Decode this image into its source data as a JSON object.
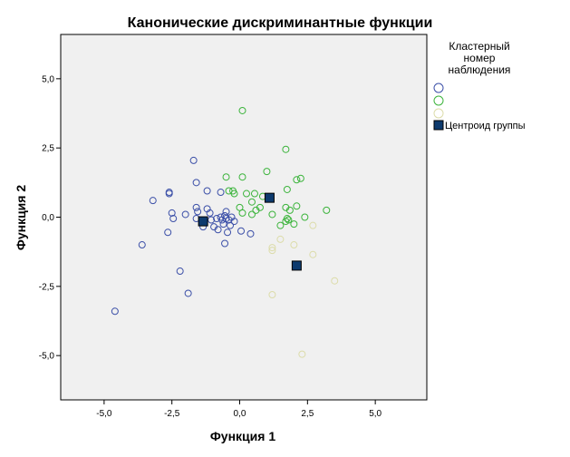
{
  "chart_data": {
    "type": "scatter",
    "title": "Канонические дискриминантные функции",
    "xlabel": "Функция 1",
    "ylabel": "Функция 2",
    "xlim": [
      -6.6,
      6.9
    ],
    "ylim": [
      -6.6,
      6.6
    ],
    "xticks": [
      -5,
      -2.5,
      0,
      2.5,
      5
    ],
    "xtick_labels": [
      "-5,0",
      "-2,5",
      "0,0",
      "2,5",
      "5,0"
    ],
    "yticks": [
      -5,
      -2.5,
      0,
      2.5,
      5
    ],
    "ytick_labels": [
      "-5,0",
      "-2,5",
      "0,0",
      "2,5",
      "5,0"
    ],
    "grid": false,
    "legend": {
      "title_lines": [
        "Кластерный",
        "номер",
        "наблюдения"
      ],
      "placement": "right",
      "centroid_label": "Центроид группы"
    },
    "colors": {
      "plot_background": "#f0f0f0",
      "series_1": "#3c50a8",
      "series_2": "#3cb43c",
      "series_3": "#dcdcaa",
      "centroid": "#0d3a6e"
    },
    "series": [
      {
        "points": [
          [
            -4.6,
            -3.4
          ],
          [
            -3.6,
            -1.0
          ],
          [
            -3.2,
            0.6
          ],
          [
            -2.6,
            0.9
          ],
          [
            -2.6,
            0.85
          ],
          [
            -2.5,
            0.15
          ],
          [
            -2.45,
            -0.05
          ],
          [
            -2.65,
            -0.55
          ],
          [
            -2.2,
            -1.95
          ],
          [
            -1.9,
            -2.75
          ],
          [
            -2.0,
            0.1
          ],
          [
            -1.7,
            2.05
          ],
          [
            -1.6,
            1.25
          ],
          [
            -1.6,
            0.35
          ],
          [
            -1.55,
            0.2
          ],
          [
            -1.6,
            -0.05
          ],
          [
            -1.35,
            -0.35
          ],
          [
            -1.2,
            0.95
          ],
          [
            -1.2,
            0.3
          ],
          [
            -1.1,
            0.15
          ],
          [
            -1.05,
            -0.1
          ],
          [
            -0.95,
            -0.35
          ],
          [
            -0.85,
            -0.05
          ],
          [
            -0.8,
            -0.45
          ],
          [
            -0.7,
            0.9
          ],
          [
            -0.7,
            0.0
          ],
          [
            -0.65,
            -0.1
          ],
          [
            -0.6,
            -0.25
          ],
          [
            -0.55,
            0.05
          ],
          [
            -0.55,
            -0.95
          ],
          [
            -0.5,
            0.2
          ],
          [
            -0.5,
            -0.05
          ],
          [
            -0.45,
            -0.55
          ],
          [
            -0.4,
            -0.1
          ],
          [
            -0.3,
            0.0
          ],
          [
            -0.35,
            -0.3
          ],
          [
            -0.2,
            -0.15
          ],
          [
            0.05,
            -0.5
          ],
          [
            0.4,
            -0.6
          ]
        ]
      },
      {
        "points": [
          [
            0.1,
            3.85
          ],
          [
            1.7,
            2.45
          ],
          [
            1.0,
            1.65
          ],
          [
            -0.5,
            1.45
          ],
          [
            0.1,
            1.45
          ],
          [
            2.1,
            1.35
          ],
          [
            2.25,
            1.4
          ],
          [
            1.75,
            1.0
          ],
          [
            -0.4,
            0.95
          ],
          [
            -0.25,
            0.95
          ],
          [
            -0.2,
            0.85
          ],
          [
            0.25,
            0.85
          ],
          [
            0.55,
            0.85
          ],
          [
            0.85,
            0.75
          ],
          [
            0.45,
            0.55
          ],
          [
            0.0,
            0.35
          ],
          [
            0.75,
            0.35
          ],
          [
            1.7,
            0.35
          ],
          [
            2.1,
            0.4
          ],
          [
            3.2,
            0.25
          ],
          [
            0.1,
            0.15
          ],
          [
            0.6,
            0.25
          ],
          [
            0.45,
            0.1
          ],
          [
            1.2,
            0.1
          ],
          [
            1.85,
            0.25
          ],
          [
            1.75,
            -0.05
          ],
          [
            1.8,
            -0.1
          ],
          [
            1.7,
            -0.15
          ],
          [
            2.4,
            0.0
          ],
          [
            2.0,
            -0.25
          ],
          [
            1.5,
            -0.3
          ]
        ]
      },
      {
        "points": [
          [
            2.7,
            -0.3
          ],
          [
            1.5,
            -0.8
          ],
          [
            2.0,
            -1.0
          ],
          [
            1.2,
            -1.1
          ],
          [
            1.2,
            -1.2
          ],
          [
            2.7,
            -1.35
          ],
          [
            3.5,
            -2.3
          ],
          [
            1.2,
            -2.8
          ],
          [
            2.3,
            -4.95
          ]
        ]
      }
    ],
    "centroids": [
      [
        -1.35,
        -0.15
      ],
      [
        1.1,
        0.7
      ],
      [
        2.1,
        -1.75
      ]
    ]
  }
}
